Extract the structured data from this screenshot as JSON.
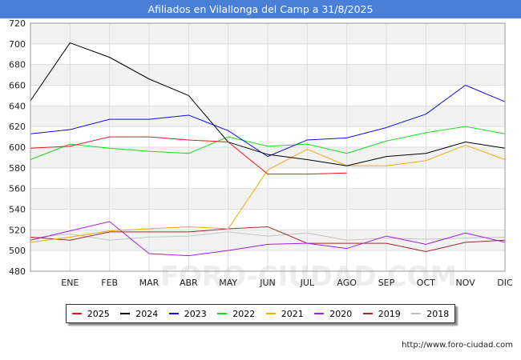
{
  "header": {
    "title": "Afiliados en Vilallonga del Camp a 31/8/2025"
  },
  "footer": {
    "url": "http://www.foro-ciudad.com"
  },
  "watermark": "FORO-CIUDAD.COM",
  "chart_data": {
    "type": "line",
    "title": "Afiliados en Vilallonga del Camp a 31/8/2025",
    "x": [
      "",
      "ENE",
      "FEB",
      "MAR",
      "ABR",
      "MAY",
      "JUN",
      "JUL",
      "AGO",
      "SEP",
      "OCT",
      "NOV",
      "DIC"
    ],
    "ylim": [
      480,
      720
    ],
    "yticks": [
      480,
      500,
      520,
      540,
      560,
      580,
      600,
      620,
      640,
      660,
      680,
      700,
      720
    ],
    "grid": true,
    "legend_position": "bottom",
    "series": [
      {
        "name": "2025",
        "color": "#e8191a",
        "values": [
          599,
          601,
          610,
          610,
          607,
          605,
          574,
          574,
          575,
          null,
          null,
          null,
          null
        ]
      },
      {
        "name": "2024",
        "color": "#000000",
        "values": [
          645,
          701,
          687,
          666,
          650,
          605,
          593,
          588,
          582,
          591,
          594,
          605,
          599
        ]
      },
      {
        "name": "2023",
        "color": "#1010d8",
        "values": [
          613,
          617,
          627,
          627,
          631,
          616,
          591,
          607,
          609,
          619,
          632,
          660,
          644
        ]
      },
      {
        "name": "2022",
        "color": "#1ddd1d",
        "values": [
          588,
          603,
          599,
          596,
          594,
          610,
          601,
          603,
          594,
          606,
          614,
          620,
          613
        ]
      },
      {
        "name": "2021",
        "color": "#f4a80c",
        "values": [
          508,
          513,
          519,
          521,
          523,
          521,
          578,
          598,
          582,
          582,
          587,
          602,
          588
        ]
      },
      {
        "name": "2020",
        "color": "#a41ee0",
        "values": [
          510,
          519,
          528,
          497,
          495,
          500,
          506,
          507,
          502,
          514,
          506,
          517,
          508
        ]
      },
      {
        "name": "2019",
        "color": "#a52b2b",
        "values": [
          513,
          510,
          518,
          518,
          518,
          521,
          523,
          507,
          507,
          507,
          499,
          508,
          510
        ]
      },
      {
        "name": "2018",
        "color": "#c4c4c4",
        "values": [
          512,
          516,
          510,
          513,
          514,
          518,
          514,
          517,
          510,
          512,
          511,
          512,
          513
        ]
      }
    ]
  }
}
